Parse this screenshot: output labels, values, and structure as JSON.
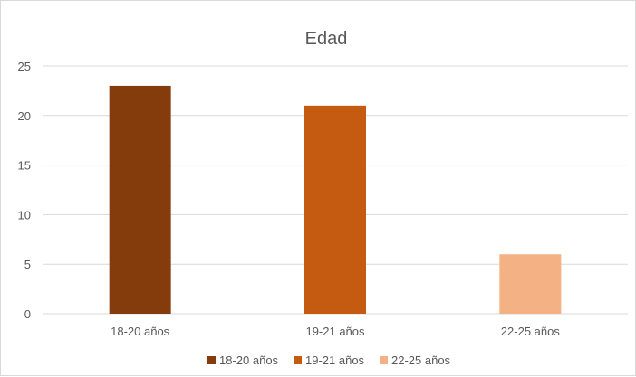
{
  "chart_data": {
    "type": "bar",
    "title": "Edad",
    "categories": [
      "18-20 años",
      "19-21 años",
      "22-25 años"
    ],
    "values": [
      23,
      21,
      6
    ],
    "colors": [
      "#843C0C",
      "#C55A11",
      "#F4B183"
    ],
    "ylim": [
      0,
      25
    ],
    "yticks": [
      0,
      5,
      10,
      15,
      20,
      25
    ],
    "xlabel": "",
    "ylabel": "",
    "grid": true,
    "legend_position": "bottom",
    "legend": [
      "18-20 años",
      "19-21 años",
      "22-25 años"
    ]
  }
}
